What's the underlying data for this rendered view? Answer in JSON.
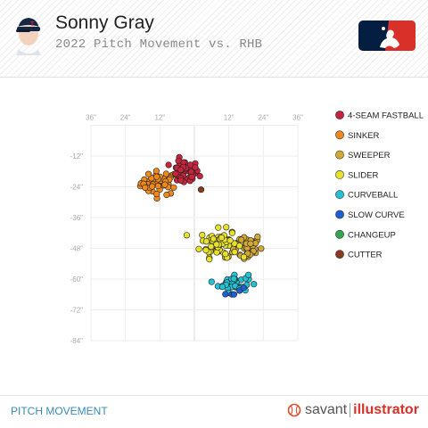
{
  "header": {
    "player_name": "Sonny Gray",
    "subtitle": "2022 Pitch Movement vs. RHB"
  },
  "footer": {
    "section_label": "PITCH MOVEMENT",
    "brand_left": "savant",
    "brand_right": "illustrator"
  },
  "colors": {
    "brand_red": "#d9312a",
    "brand_blue": "#041e42",
    "footer_link": "#3a8bb5"
  },
  "chart_data": {
    "type": "scatter",
    "title": "2022 Pitch Movement vs. RHB",
    "xlabel": "",
    "ylabel": "",
    "xlim": [
      -36,
      36
    ],
    "ylim": [
      -84,
      0
    ],
    "x_ticks": [
      "36\"",
      "24\"",
      "12\"",
      "",
      "12\"",
      "24\"",
      "36\""
    ],
    "y_ticks": [
      "-12\"",
      "-24\"",
      "-36\"",
      "-48\"",
      "-60\"",
      "-72\"",
      "-84\""
    ],
    "grid": true,
    "legend_position": "right",
    "series": [
      {
        "name": "4-SEAM FASTBALL",
        "color": "#c8243b",
        "center": [
          -3.6,
          -18.5
        ],
        "spread": [
          2.6,
          2.4
        ],
        "count": 45
      },
      {
        "name": "SINKER",
        "color": "#f0891c",
        "center": [
          -12,
          -22.5
        ],
        "spread": [
          3.3,
          2.3
        ],
        "count": 50
      },
      {
        "name": "SWEEPER",
        "color": "#d4a933",
        "center": [
          17,
          -47.5
        ],
        "spread": [
          3.3,
          2.7
        ],
        "count": 45
      },
      {
        "name": "SLIDER",
        "color": "#e7e12b",
        "center": [
          8.5,
          -46
        ],
        "spread": [
          3.2,
          2.7
        ],
        "count": 65
      },
      {
        "name": "CURVEBALL",
        "color": "#22c2d6",
        "center": [
          13.5,
          -61.5
        ],
        "spread": [
          2.6,
          1.8
        ],
        "count": 40
      },
      {
        "name": "SLOW CURVE",
        "color": "#1f5fd6",
        "center": [
          13,
          -64
        ],
        "spread": [
          2.5,
          2
        ],
        "count": 5
      },
      {
        "name": "CHANGEUP",
        "color": "#2ea84e",
        "center": null,
        "spread": null,
        "count": 0
      },
      {
        "name": "CUTTER",
        "color": "#8c3a1f",
        "center": [
          2.5,
          -25
        ],
        "spread": [
          0.3,
          0.3
        ],
        "count": 1
      }
    ]
  }
}
